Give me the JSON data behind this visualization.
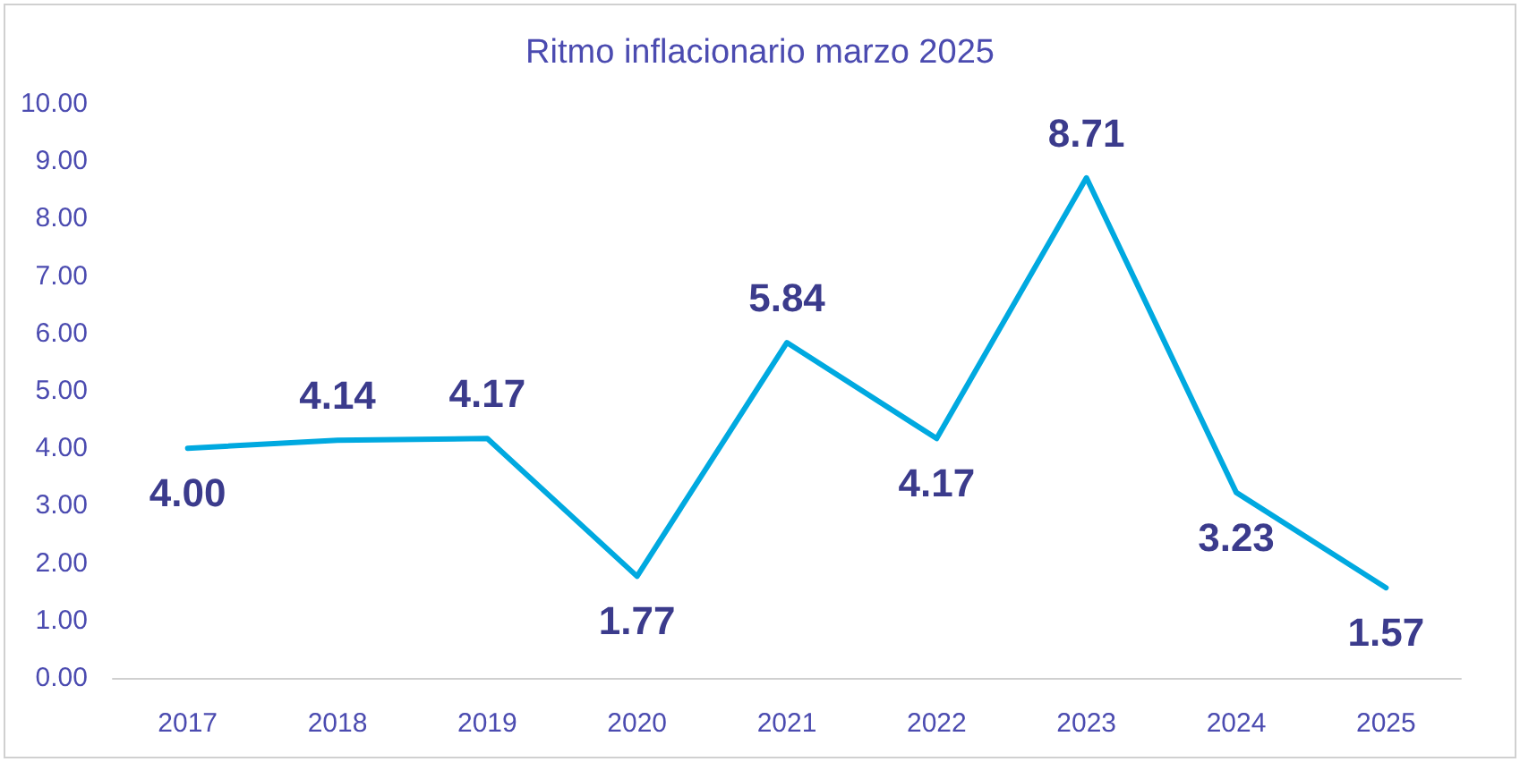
{
  "chart_data": {
    "type": "line",
    "title": "Ritmo inflacionario marzo 2025",
    "categories": [
      "2017",
      "2018",
      "2019",
      "2020",
      "2021",
      "2022",
      "2023",
      "2024",
      "2025"
    ],
    "series": [
      {
        "color": "#00a9e0",
        "values": [
          4.0,
          4.14,
          4.17,
          1.77,
          5.84,
          4.17,
          8.71,
          3.23,
          1.57
        ],
        "value_labels": [
          "4.00",
          "4.14",
          "4.17",
          "1.77",
          "5.84",
          "4.17",
          "8.71",
          "3.23",
          "1.57"
        ]
      }
    ],
    "ylim": [
      0,
      10
    ],
    "yticks": [
      {
        "value": 0,
        "label": "0.00"
      },
      {
        "value": 1,
        "label": "1.00"
      },
      {
        "value": 2,
        "label": "2.00"
      },
      {
        "value": 3,
        "label": "3.00"
      },
      {
        "value": 4,
        "label": "4.00"
      },
      {
        "value": 5,
        "label": "5.00"
      },
      {
        "value": 6,
        "label": "6.00"
      },
      {
        "value": 7,
        "label": "7.00"
      },
      {
        "value": 8,
        "label": "8.00"
      },
      {
        "value": 9,
        "label": "9.00"
      },
      {
        "value": 10,
        "label": "10.00"
      }
    ],
    "grid": false,
    "marker": "none",
    "line_style": "solid"
  }
}
